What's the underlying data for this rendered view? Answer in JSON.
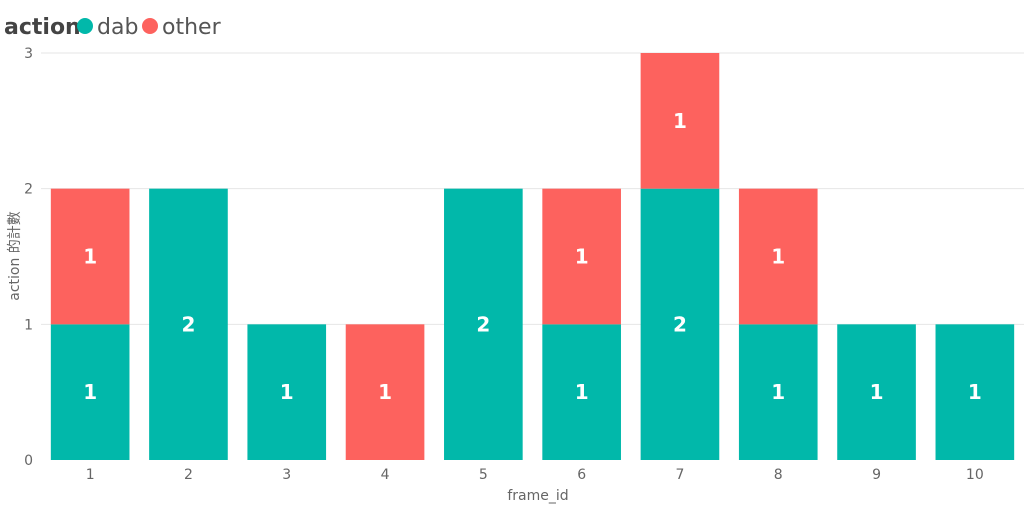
{
  "chart_data": {
    "type": "bar",
    "stacked": true,
    "legend": {
      "title": "action",
      "position": "top-left"
    },
    "categories": [
      "1",
      "2",
      "3",
      "4",
      "5",
      "6",
      "7",
      "8",
      "9",
      "10"
    ],
    "series": [
      {
        "name": "dab",
        "color": "#01B8AA",
        "values": [
          1,
          2,
          1,
          0,
          2,
          1,
          2,
          1,
          1,
          1
        ]
      },
      {
        "name": "other",
        "color": "#FD625E",
        "values": [
          1,
          0,
          0,
          1,
          0,
          1,
          1,
          1,
          0,
          0
        ]
      }
    ],
    "xlabel": "frame_id",
    "ylabel": "action 的計數",
    "ylim": [
      0,
      3
    ],
    "yticks": [
      0,
      1,
      2,
      3
    ],
    "grid": true,
    "data_labels": true
  }
}
